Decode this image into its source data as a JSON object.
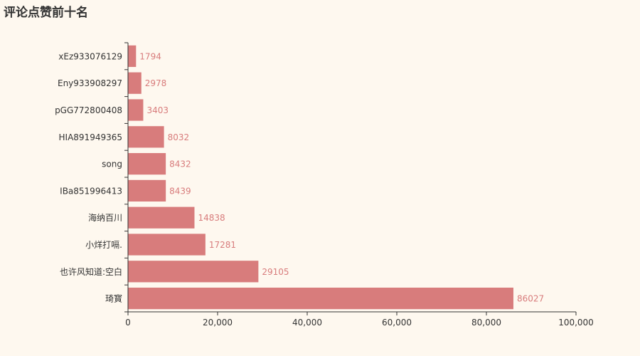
{
  "chart_data": {
    "type": "bar",
    "orientation": "horizontal",
    "title": "评论点赞前十名",
    "categories": [
      "xEz933076129",
      "Eny933908297",
      "pGG772800408",
      "HIA891949365",
      "song",
      "IBa851996413",
      "海纳百川",
      "小烊打嗝.",
      "也许风知道:空白",
      "琦寳"
    ],
    "series": [
      {
        "values": [
          1794,
          2978,
          3403,
          8032,
          8432,
          8439,
          14838,
          17281,
          29105,
          86027
        ]
      }
    ],
    "data_labels": [
      "1794",
      "2978",
      "3403",
      "8032",
      "8432",
      "8439",
      "14838",
      "17281",
      "29105",
      "86027"
    ],
    "xlim": [
      0,
      100000
    ],
    "x_ticks": [
      0,
      20000,
      40000,
      60000,
      80000,
      100000
    ],
    "x_tick_labels": [
      "0",
      "20,000",
      "40,000",
      "60,000",
      "80,000",
      "100,000"
    ],
    "grid": false,
    "colors": {
      "bar": "#d87c7c",
      "label": "#d87c7c",
      "axis": "#333333",
      "background": "#fef8ef"
    }
  }
}
